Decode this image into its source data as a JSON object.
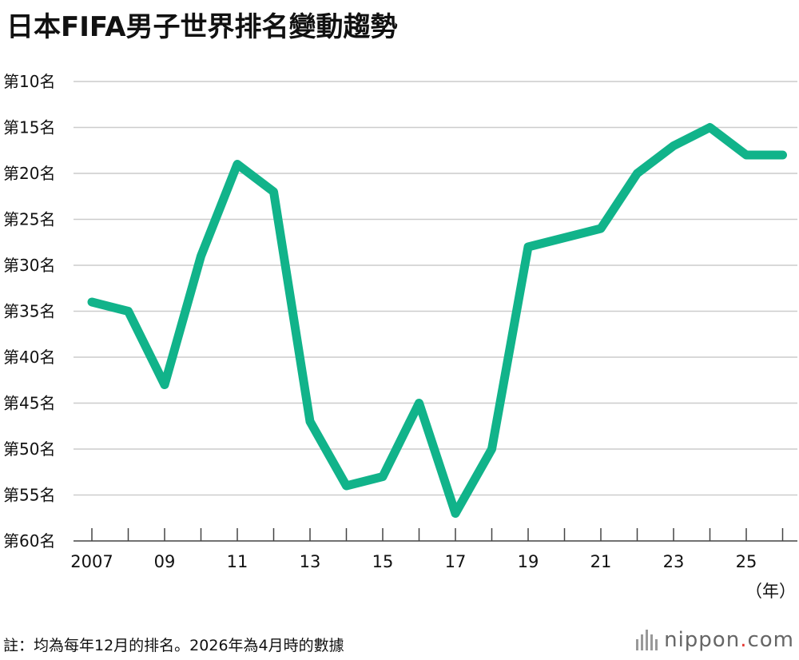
{
  "title": "日本FIFA男子世界排名變動趨勢",
  "note": "註：均為每年12月的排名。2026年為4月時的數據",
  "logo": {
    "prefix": "nippon",
    "dot": ".",
    "suffix": "com"
  },
  "colors": {
    "line": "#11b38a",
    "grid": "#cccccc",
    "axis": "#444444"
  },
  "chart_data": {
    "type": "line",
    "title": "日本FIFA男子世界排名變動趨勢",
    "x_unit": "（年）",
    "x": [
      2007,
      2008,
      2009,
      2010,
      2011,
      2012,
      2013,
      2014,
      2015,
      2016,
      2017,
      2018,
      2019,
      2020,
      2021,
      2022,
      2023,
      2024,
      2025,
      2026
    ],
    "series": [
      {
        "values": [
          34,
          35,
          43,
          29,
          19,
          22,
          47,
          54,
          53,
          45,
          57,
          50,
          28,
          27,
          26,
          20,
          17,
          15,
          18,
          18
        ]
      }
    ],
    "ylim": [
      10,
      60
    ],
    "y_inverted": true,
    "y_ticks": [
      10,
      15,
      20,
      25,
      30,
      35,
      40,
      45,
      50,
      55,
      60
    ],
    "y_tick_labels": [
      "第10名",
      "第15名",
      "第20名",
      "第25名",
      "第30名",
      "第35名",
      "第40名",
      "第45名",
      "第50名",
      "第55名",
      "第60名"
    ],
    "x_tick_labels": [
      {
        "x": 2007,
        "label": "2007"
      },
      {
        "x": 2009,
        "label": "09"
      },
      {
        "x": 2011,
        "label": "11"
      },
      {
        "x": 2013,
        "label": "13"
      },
      {
        "x": 2015,
        "label": "15"
      },
      {
        "x": 2017,
        "label": "17"
      },
      {
        "x": 2019,
        "label": "19"
      },
      {
        "x": 2021,
        "label": "21"
      },
      {
        "x": 2023,
        "label": "23"
      },
      {
        "x": 2025,
        "label": "25"
      }
    ],
    "grid": true,
    "legend": "none"
  }
}
